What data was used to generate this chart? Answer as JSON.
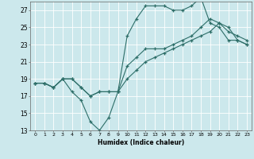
{
  "title": "",
  "xlabel": "Humidex (Indice chaleur)",
  "ylabel": "",
  "xlim": [
    -0.5,
    23.5
  ],
  "ylim": [
    13,
    28
  ],
  "yticks": [
    13,
    15,
    17,
    19,
    21,
    23,
    25,
    27
  ],
  "xticks": [
    0,
    1,
    2,
    3,
    4,
    5,
    6,
    7,
    8,
    9,
    10,
    11,
    12,
    13,
    14,
    15,
    16,
    17,
    18,
    19,
    20,
    21,
    22,
    23
  ],
  "bg_color": "#cce8ec",
  "line_color": "#2d6e68",
  "grid_color": "#ffffff",
  "line1_x": [
    0,
    1,
    2,
    3,
    4,
    5,
    6,
    7,
    8,
    9,
    10,
    11,
    12,
    13,
    14,
    15,
    16,
    17,
    18,
    19,
    20,
    21,
    22,
    23
  ],
  "line1_y": [
    18.5,
    18.5,
    18.0,
    19.0,
    17.5,
    16.5,
    14.0,
    13.0,
    14.5,
    17.5,
    24.0,
    26.0,
    27.5,
    27.5,
    27.5,
    27.0,
    27.0,
    27.5,
    28.5,
    25.5,
    25.0,
    23.5,
    23.5,
    23.0
  ],
  "line2_x": [
    0,
    1,
    2,
    3,
    4,
    5,
    6,
    7,
    8,
    9,
    10,
    11,
    12,
    13,
    14,
    15,
    16,
    17,
    18,
    19,
    20,
    21,
    22,
    23
  ],
  "line2_y": [
    18.5,
    18.5,
    18.0,
    19.0,
    19.0,
    18.0,
    17.0,
    17.5,
    17.5,
    17.5,
    20.5,
    21.5,
    22.5,
    22.5,
    22.5,
    23.0,
    23.5,
    24.0,
    25.0,
    26.0,
    25.5,
    24.5,
    24.0,
    23.5
  ],
  "line3_x": [
    0,
    1,
    2,
    3,
    4,
    5,
    6,
    7,
    8,
    9,
    10,
    11,
    12,
    13,
    14,
    15,
    16,
    17,
    18,
    19,
    20,
    21,
    22,
    23
  ],
  "line3_y": [
    18.5,
    18.5,
    18.0,
    19.0,
    19.0,
    18.0,
    17.0,
    17.5,
    17.5,
    17.5,
    19.0,
    20.0,
    21.0,
    21.5,
    22.0,
    22.5,
    23.0,
    23.5,
    24.0,
    24.5,
    25.5,
    25.0,
    23.5,
    23.0
  ]
}
